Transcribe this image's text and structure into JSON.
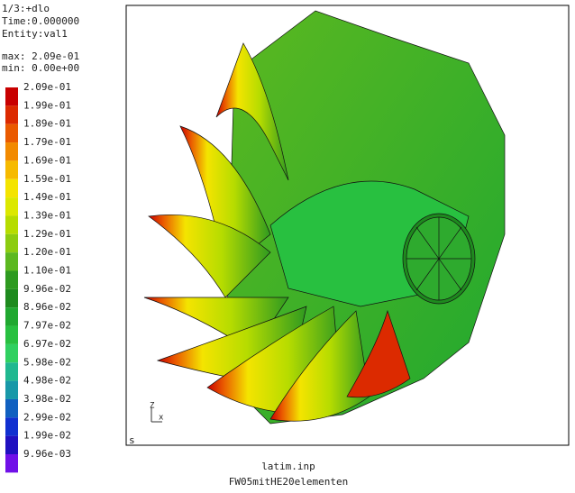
{
  "header": {
    "lines": [
      "1/3:+dlo",
      "Time:0.000000",
      "Entity:val1"
    ],
    "max": "max: 2.09e-01",
    "min": "min: 0.00e+00"
  },
  "legend": {
    "items": [
      {
        "label": "2.09e-01",
        "color": "#c80000"
      },
      {
        "label": "1.99e-01",
        "color": "#dc2a00"
      },
      {
        "label": "1.89e-01",
        "color": "#ea5a00"
      },
      {
        "label": "1.79e-01",
        "color": "#f28a00"
      },
      {
        "label": "1.69e-01",
        "color": "#f6ba00"
      },
      {
        "label": "1.59e-01",
        "color": "#f4e400"
      },
      {
        "label": "1.49e-01",
        "color": "#dce800"
      },
      {
        "label": "1.39e-01",
        "color": "#b6dc00"
      },
      {
        "label": "1.29e-01",
        "color": "#8ccc10"
      },
      {
        "label": "1.20e-01",
        "color": "#5cb820"
      },
      {
        "label": "1.10e-01",
        "color": "#2e9a20"
      },
      {
        "label": "9.96e-02",
        "color": "#1e8a1e"
      },
      {
        "label": "8.96e-02",
        "color": "#20a830"
      },
      {
        "label": "7.97e-02",
        "color": "#28c040"
      },
      {
        "label": "6.97e-02",
        "color": "#30d060"
      },
      {
        "label": "5.98e-02",
        "color": "#20b890"
      },
      {
        "label": "4.98e-02",
        "color": "#1898a8"
      },
      {
        "label": "3.98e-02",
        "color": "#1060c0"
      },
      {
        "label": "2.99e-02",
        "color": "#1030d0"
      },
      {
        "label": "1.99e-02",
        "color": "#2010c0"
      },
      {
        "label": "9.96e-03",
        "color": "#7010e8"
      }
    ]
  },
  "viewport": {
    "corner": "s",
    "axes": {
      "z": "Z",
      "x": "x"
    }
  },
  "footer": {
    "file": "latim.inp",
    "model": "FW05mitHE20elementen"
  }
}
